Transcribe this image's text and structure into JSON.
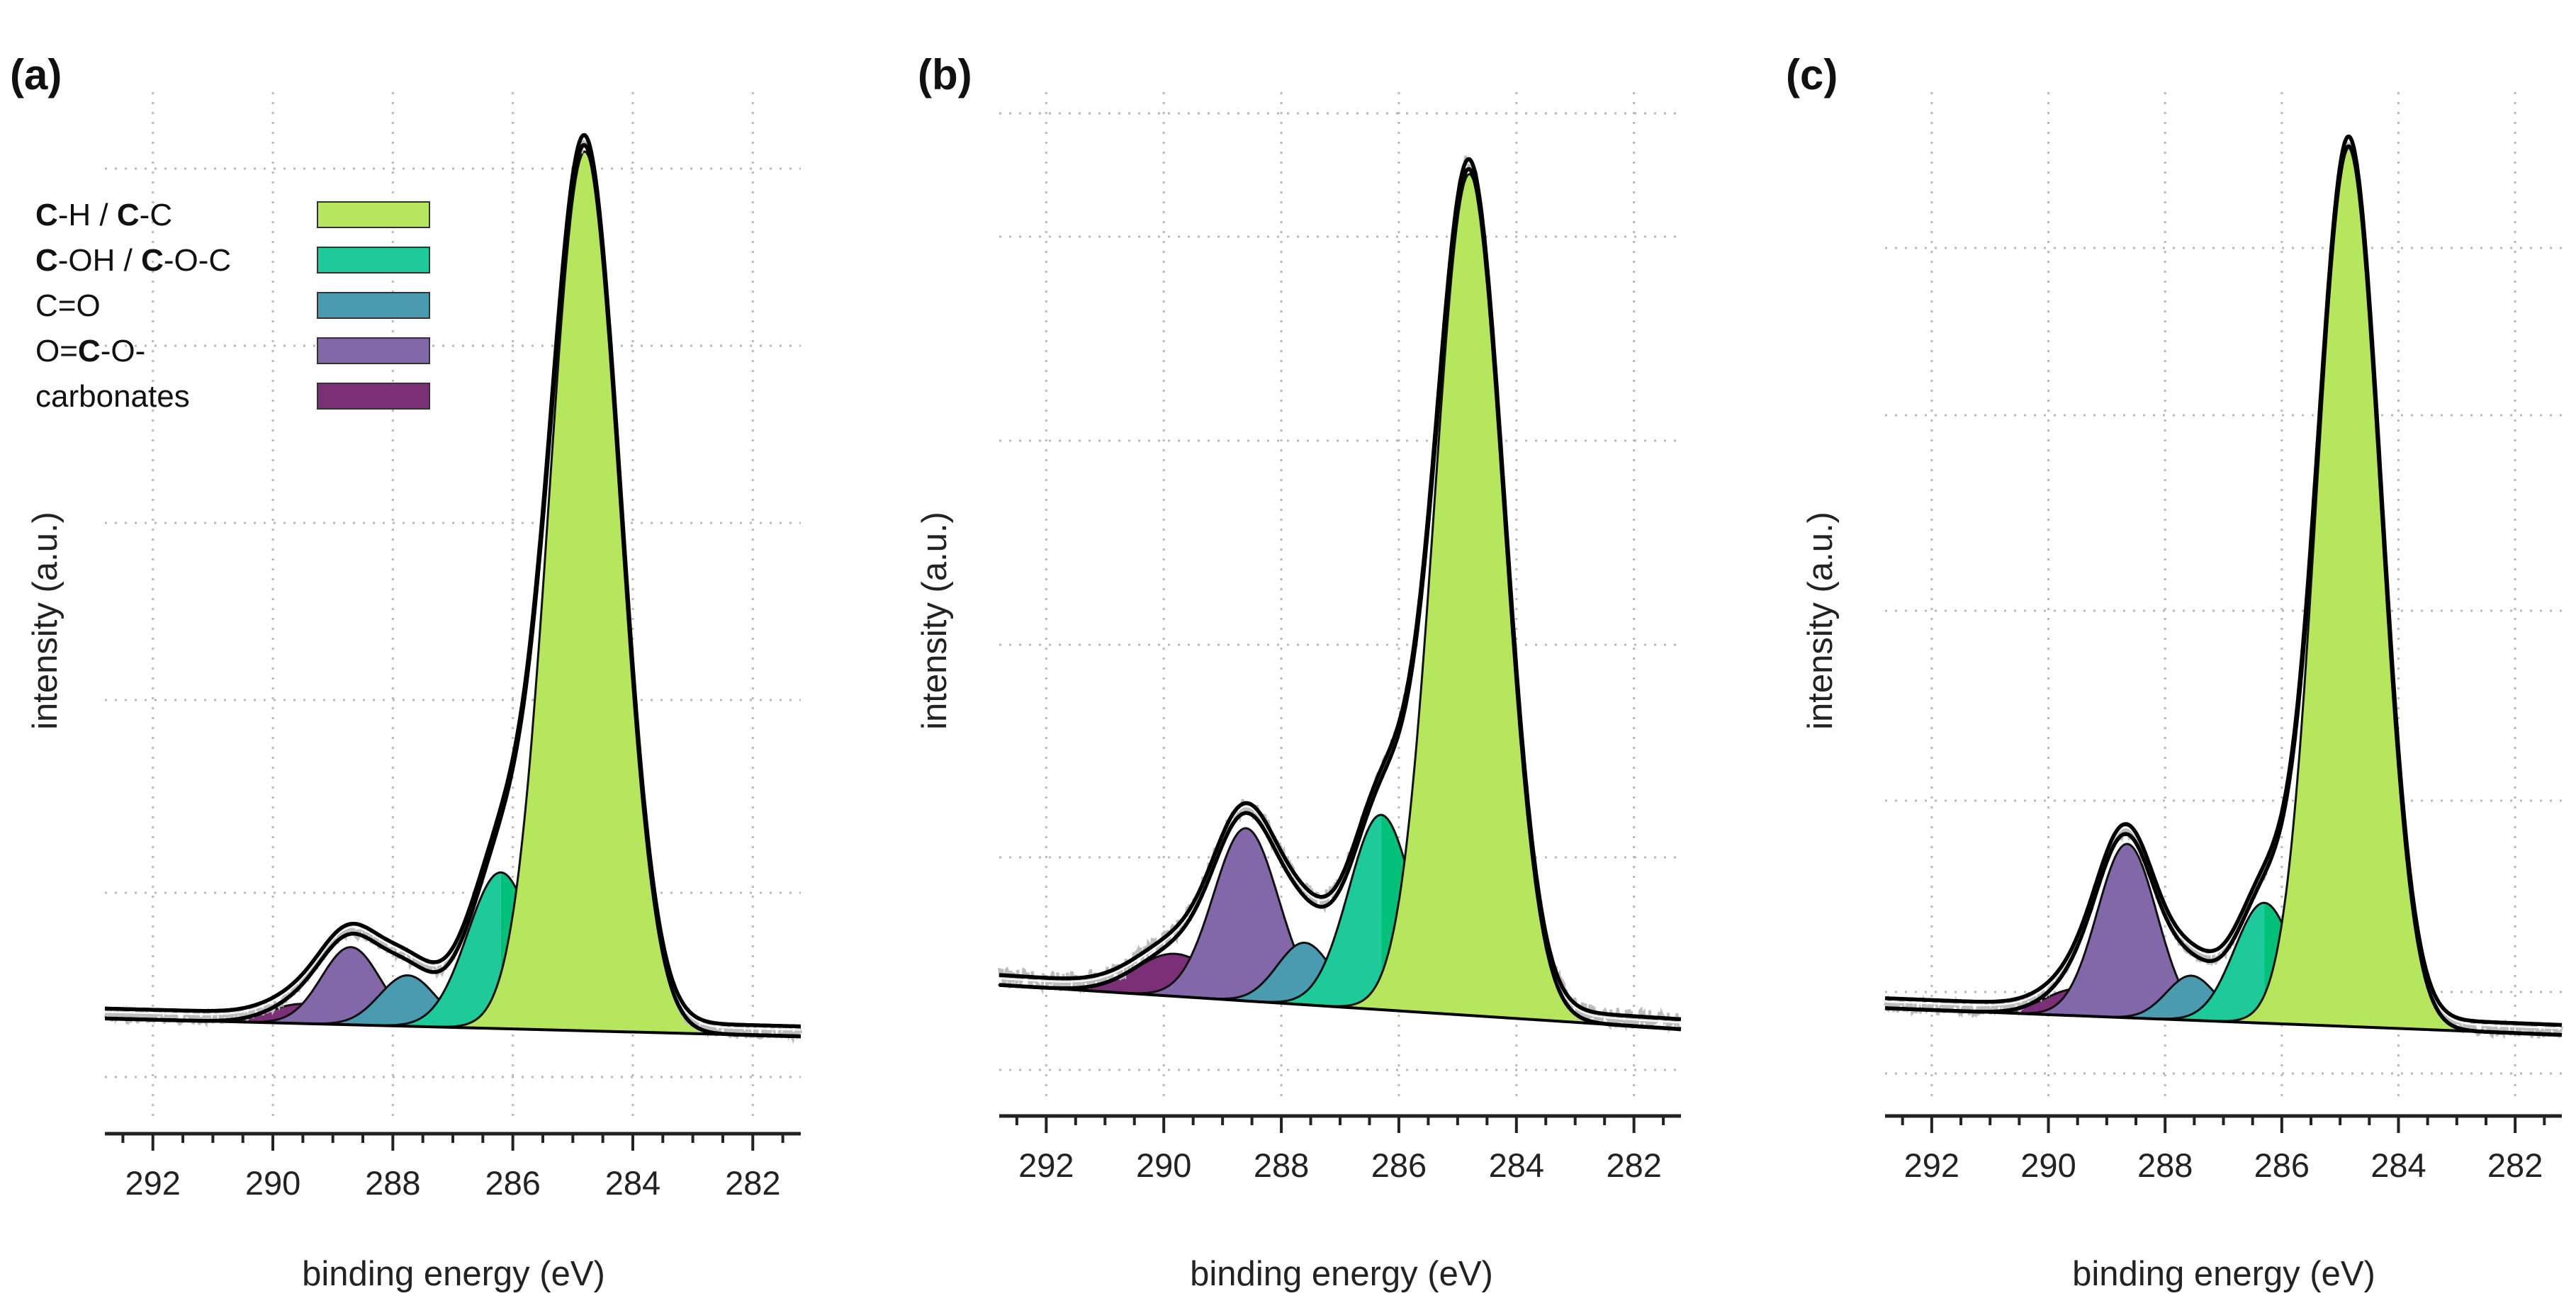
{
  "figure": {
    "panel_labels": [
      "(a)",
      "(b)",
      "(c)"
    ],
    "xlabel": "binding energy (eV)",
    "ylabel": "intensity (a.u.)"
  },
  "legend": {
    "entries": [
      {
        "id": "ch",
        "parts": [
          {
            "t": "C",
            "b": true
          },
          {
            "t": "-H / ",
            "b": false
          },
          {
            "t": "C",
            "b": true
          },
          {
            "t": "-C",
            "b": false
          }
        ],
        "color": "#b5e65e"
      },
      {
        "id": "coh",
        "parts": [
          {
            "t": "C",
            "b": true
          },
          {
            "t": "-OH / ",
            "b": false
          },
          {
            "t": "C",
            "b": true
          },
          {
            "t": "-O-C",
            "b": false
          }
        ],
        "color": "#1ec99a"
      },
      {
        "id": "co",
        "parts": [
          {
            "t": "C=O",
            "b": false
          }
        ],
        "color": "#4a9bb0"
      },
      {
        "id": "ococ",
        "parts": [
          {
            "t": "O=",
            "b": false
          },
          {
            "t": "C",
            "b": true
          },
          {
            "t": "-O-",
            "b": false
          }
        ],
        "color": "#8268a8"
      },
      {
        "id": "carb",
        "parts": [
          {
            "t": "carbonates",
            "b": false
          }
        ],
        "color": "#7a2f76"
      }
    ]
  },
  "chart_data": [
    {
      "type": "area",
      "panel": "(a)",
      "title": "",
      "xlabel": "binding energy (eV)",
      "ylabel": "intensity (a.u.)",
      "x_reversed": true,
      "xlim": [
        292.8,
        281.2
      ],
      "ylim": [
        -0.12,
        1.08
      ],
      "xticks": [
        292,
        290,
        288,
        286,
        284,
        282
      ],
      "xtick_labels": [
        "292",
        "290",
        "288",
        "286",
        "284",
        "282"
      ],
      "grid": true,
      "baseline": {
        "at_292_8": 0.01,
        "at_281_2": -0.01
      },
      "series": [
        {
          "name": "carbonates",
          "center": 289.5,
          "height": 0.022,
          "fwhm": 1.3,
          "color": "#7a2f76"
        },
        {
          "name": "O=C-O-",
          "center": 288.7,
          "height": 0.087,
          "fwhm": 1.15,
          "color": "#8268a8"
        },
        {
          "name": "C=O",
          "center": 287.75,
          "height": 0.057,
          "fwhm": 1.1,
          "color": "#4a9bb0"
        },
        {
          "name": "C-OH / C-O-C",
          "center": 286.2,
          "height": 0.175,
          "fwhm": 1.3,
          "color": "#1ec99a",
          "split_color": "#00c07a"
        },
        {
          "name": "C-H / C-C",
          "center": 284.8,
          "height": 0.985,
          "fwhm": 1.4,
          "color": "#b5e65e"
        }
      ]
    },
    {
      "type": "area",
      "panel": "(b)",
      "title": "",
      "xlabel": "binding energy (eV)",
      "ylabel": "intensity (a.u.)",
      "x_reversed": true,
      "xlim": [
        292.8,
        281.2
      ],
      "ylim": [
        -0.12,
        1.08
      ],
      "xticks": [
        292,
        290,
        288,
        286,
        284,
        282
      ],
      "xtick_labels": [
        "292",
        "290",
        "288",
        "286",
        "284",
        "282"
      ],
      "grid": true,
      "baseline": {
        "at_292_8": 0.04,
        "at_281_2": -0.01
      },
      "series": [
        {
          "name": "carbonates",
          "center": 289.8,
          "height": 0.048,
          "fwhm": 1.6,
          "color": "#7a2f76"
        },
        {
          "name": "O=C-O-",
          "center": 288.6,
          "height": 0.195,
          "fwhm": 1.3,
          "color": "#8268a8"
        },
        {
          "name": "C=O",
          "center": 287.6,
          "height": 0.07,
          "fwhm": 1.1,
          "color": "#4a9bb0"
        },
        {
          "name": "C-OH / C-O-C",
          "center": 286.3,
          "height": 0.22,
          "fwhm": 1.3,
          "color": "#1ec99a",
          "split_color": "#00c07a"
        },
        {
          "name": "C-H / C-C",
          "center": 284.8,
          "height": 0.95,
          "fwhm": 1.4,
          "color": "#b5e65e"
        }
      ]
    },
    {
      "type": "area",
      "panel": "(c)",
      "title": "",
      "xlabel": "binding energy (eV)",
      "ylabel": "intensity (a.u.)",
      "x_reversed": true,
      "xlim": [
        292.8,
        281.2
      ],
      "ylim": [
        -0.12,
        1.08
      ],
      "xticks": [
        292,
        290,
        288,
        286,
        284,
        282
      ],
      "xtick_labels": [
        "292",
        "290",
        "288",
        "286",
        "284",
        "282"
      ],
      "grid": true,
      "baseline": {
        "at_292_8": 0.02,
        "at_281_2": -0.01
      },
      "series": [
        {
          "name": "carbonates",
          "center": 289.5,
          "height": 0.03,
          "fwhm": 1.3,
          "color": "#7a2f76"
        },
        {
          "name": "O=C-O-",
          "center": 288.65,
          "height": 0.195,
          "fwhm": 1.2,
          "color": "#8268a8"
        },
        {
          "name": "C=O",
          "center": 287.55,
          "height": 0.05,
          "fwhm": 1.0,
          "color": "#4a9bb0"
        },
        {
          "name": "C-OH / C-O-C",
          "center": 286.3,
          "height": 0.135,
          "fwhm": 1.2,
          "color": "#1ec99a",
          "split_color": "#00c07a"
        },
        {
          "name": "C-H / C-C",
          "center": 284.85,
          "height": 0.985,
          "fwhm": 1.3,
          "color": "#b5e65e"
        }
      ]
    }
  ]
}
